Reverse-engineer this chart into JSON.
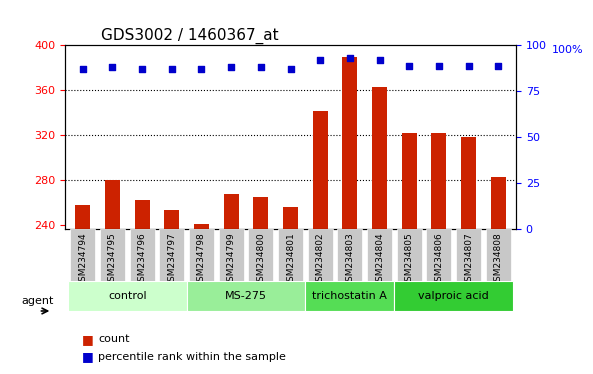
{
  "title": "GDS3002 / 1460367_at",
  "samples": [
    "GSM234794",
    "GSM234795",
    "GSM234796",
    "GSM234797",
    "GSM234798",
    "GSM234799",
    "GSM234800",
    "GSM234801",
    "GSM234802",
    "GSM234803",
    "GSM234804",
    "GSM234805",
    "GSM234806",
    "GSM234807",
    "GSM234808"
  ],
  "counts": [
    258,
    280,
    262,
    253,
    241,
    268,
    265,
    256,
    342,
    390,
    363,
    322,
    322,
    318,
    283
  ],
  "percentiles": [
    87,
    88,
    87,
    87,
    87,
    88,
    88,
    87,
    92,
    93,
    92,
    89,
    89,
    89,
    89
  ],
  "bar_color": "#cc2200",
  "dot_color": "#0000cc",
  "ylim_left": [
    236,
    400
  ],
  "ylim_right": [
    0,
    100
  ],
  "yticks_left": [
    240,
    280,
    320,
    360,
    400
  ],
  "yticks_right": [
    0,
    25,
    50,
    75,
    100
  ],
  "groups": [
    {
      "label": "control",
      "start": 0,
      "end": 3,
      "color": "#ccffcc"
    },
    {
      "label": "MS-275",
      "start": 4,
      "end": 7,
      "color": "#99ee99"
    },
    {
      "label": "trichostatin A",
      "start": 8,
      "end": 10,
      "color": "#55dd55"
    },
    {
      "label": "valproic acid",
      "start": 11,
      "end": 14,
      "color": "#33cc33"
    }
  ],
  "agent_label": "agent",
  "legend_count_label": "count",
  "legend_pct_label": "percentile rank within the sample",
  "background_color": "#ffffff",
  "plot_bg_color": "#ffffff",
  "tick_area_color": "#d3d3d3"
}
